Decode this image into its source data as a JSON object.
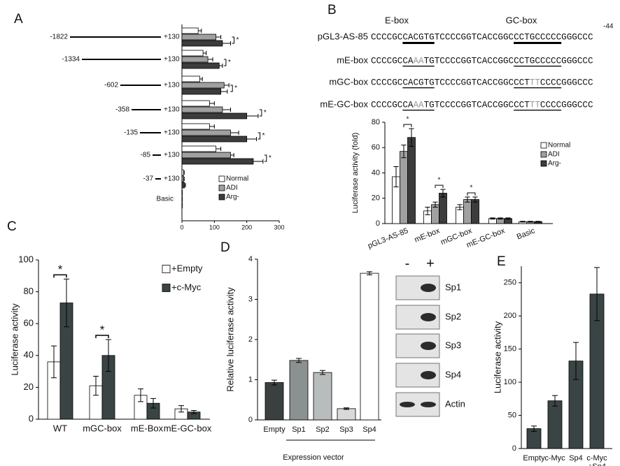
{
  "chart_data": [
    {
      "type": "bar",
      "orientation": "horizontal",
      "panel_label": "A",
      "categories": [
        "-1822",
        "-1334",
        "-602",
        "-358",
        "-135",
        "-85",
        "-37",
        "Basic"
      ],
      "end_labels": [
        "+130",
        "+130",
        "+130",
        "+130",
        "+130",
        "+130",
        "+130",
        null
      ],
      "series": [
        {
          "name": "Normal",
          "color": "#ffffff",
          "values": [
            50,
            65,
            55,
            85,
            85,
            105,
            5,
            1
          ],
          "errors": [
            10,
            10,
            8,
            15,
            15,
            15,
            2,
            0
          ]
        },
        {
          "name": "ADI",
          "color": "#a0a0a0",
          "values": [
            105,
            80,
            130,
            125,
            150,
            150,
            5,
            1
          ],
          "errors": [
            15,
            15,
            15,
            25,
            25,
            10,
            2,
            0
          ]
        },
        {
          "name": "Arg-",
          "color": "#3c3c3c",
          "values": [
            125,
            115,
            120,
            200,
            200,
            220,
            8,
            1
          ],
          "errors": [
            25,
            10,
            20,
            35,
            30,
            30,
            3,
            0
          ]
        }
      ],
      "significance_labels": [
        "*",
        "*",
        "*",
        "*",
        "*",
        "*",
        null,
        null
      ],
      "xlim": [
        0,
        300
      ],
      "xticks": [
        0,
        100,
        200,
        300
      ],
      "legend": "lower right"
    },
    {
      "type": "bar",
      "panel_label": "B",
      "box_labels": [
        "E-box",
        "GC-box"
      ],
      "sequences": [
        {
          "name": "pGL3-AS-85",
          "end_label": "-44",
          "parts": [
            {
              "text": "CCCCGC"
            },
            {
              "text": "CACGTG",
              "underline": true
            },
            {
              "text": "TCCCCGGTCACCGGC"
            },
            {
              "text": "CCTGCCCCC",
              "underline": true
            },
            {
              "text": "GGGCCC"
            }
          ]
        },
        {
          "name": "mE-box",
          "parts": [
            {
              "text": "CCCCGC"
            },
            {
              "text": "CA",
              "underline": true
            },
            {
              "text": "AA",
              "underline": true,
              "gray": true
            },
            {
              "text": "TG",
              "underline": true
            },
            {
              "text": "TCCCCGGTCACCGGC"
            },
            {
              "text": "CCTGCCCCC",
              "underline": true
            },
            {
              "text": "GGGCCC"
            }
          ]
        },
        {
          "name": "mGC-box",
          "parts": [
            {
              "text": "CCCCGC"
            },
            {
              "text": "CACGTG",
              "underline": true
            },
            {
              "text": "TCCCCGGTCACCGGC"
            },
            {
              "text": "CCT",
              "underline": true
            },
            {
              "text": "TT",
              "underline": true,
              "gray": true
            },
            {
              "text": "CCCC",
              "underline": true
            },
            {
              "text": "GGGCCC"
            }
          ]
        },
        {
          "name": "mE-GC-box",
          "parts": [
            {
              "text": "CCCCGC"
            },
            {
              "text": "CA",
              "underline": true
            },
            {
              "text": "AA",
              "underline": true,
              "gray": true
            },
            {
              "text": "TG",
              "underline": true
            },
            {
              "text": "TCCCCGGTCACCGGC"
            },
            {
              "text": "CCT",
              "underline": true
            },
            {
              "text": "TT",
              "underline": true,
              "gray": true
            },
            {
              "text": "CCCC",
              "underline": true
            },
            {
              "text": "GGGCCC"
            }
          ]
        }
      ],
      "y_label": "Luciferase activity (fold)",
      "categories": [
        "pGL3-AS-85",
        "mE-box",
        "mGC-box",
        "mE-GC-box",
        "Basic"
      ],
      "series": [
        {
          "name": "Normal",
          "color": "#ffffff",
          "values": [
            37,
            10,
            13,
            4,
            1.5
          ],
          "errors": [
            8,
            3,
            2,
            0.5,
            0.3
          ]
        },
        {
          "name": "ADI",
          "color": "#a0a0a0",
          "values": [
            57,
            15,
            19,
            4,
            1.5
          ],
          "errors": [
            5,
            2,
            2,
            0.5,
            0.3
          ]
        },
        {
          "name": "Arg-",
          "color": "#3c3c3c",
          "values": [
            68,
            24,
            19,
            4,
            1.5
          ],
          "errors": [
            7,
            3,
            2,
            0.5,
            0.3
          ]
        }
      ],
      "significance_labels": [
        "*",
        "*",
        "*",
        null,
        null
      ],
      "ylim": [
        0,
        80
      ],
      "yticks": [
        0,
        20,
        40,
        60,
        80
      ],
      "legend": "upper right"
    },
    {
      "type": "bar",
      "panel_label": "C",
      "y_label": "Luciferase activity",
      "categories": [
        "WT",
        "mGC-box",
        "mE-Box",
        "mE-GC-box"
      ],
      "series": [
        {
          "name": "+Empty",
          "color": "#ffffff",
          "values": [
            36,
            21,
            15,
            6.5
          ],
          "errors": [
            10,
            6,
            4,
            2
          ]
        },
        {
          "name": "+c-Myc",
          "color": "#3a4444",
          "values": [
            73,
            40,
            10,
            4.5
          ],
          "errors": [
            15,
            10,
            3,
            1
          ]
        }
      ],
      "significance_labels": [
        "*",
        "*",
        null,
        null
      ],
      "ylim": [
        0,
        100
      ],
      "yticks": [
        0,
        20,
        40,
        60,
        80,
        100
      ],
      "legend": "upper right"
    },
    {
      "type": "bar",
      "panel_label": "D",
      "y_label": "Relative luciferase activity",
      "x_label": "Expression vector",
      "categories": [
        "Empty",
        "Sp1",
        "Sp2",
        "Sp3",
        "Sp4"
      ],
      "values": [
        0.93,
        1.48,
        1.18,
        0.28,
        3.65
      ],
      "errors": [
        0.06,
        0.05,
        0.05,
        0.02,
        0.04
      ],
      "colors": [
        "#3a3f3f",
        "#8b9090",
        "#b9bcbc",
        "#d8dada",
        "#ffffff"
      ],
      "ylim": [
        0,
        4
      ],
      "yticks": [
        0,
        1,
        2,
        3,
        4
      ],
      "blot": {
        "lanes": [
          "-",
          "+"
        ],
        "proteins": [
          "Sp1",
          "Sp2",
          "Sp3",
          "Sp4",
          "Actin"
        ]
      }
    },
    {
      "type": "bar",
      "panel_label": "E",
      "y_label": "Luciferase activity",
      "categories": [
        "Empty",
        "c-Myc",
        "Sp4",
        "c-Myc +Sp4"
      ],
      "values": [
        30,
        72,
        132,
        233
      ],
      "errors": [
        4,
        8,
        28,
        40
      ],
      "color": "#3a4444",
      "ylim": [
        0,
        275
      ],
      "yticks": [
        0,
        50,
        100,
        150,
        200,
        250
      ]
    }
  ]
}
